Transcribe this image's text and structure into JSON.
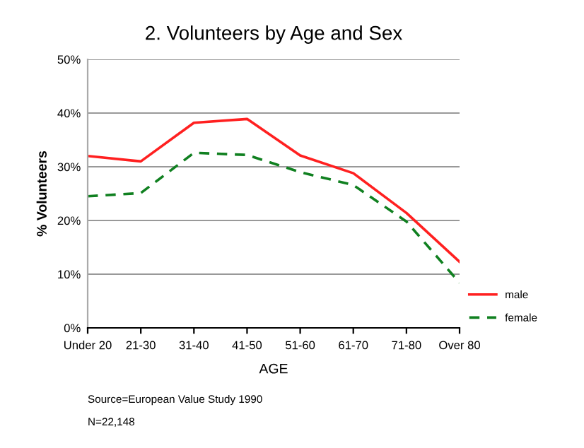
{
  "chart_data": {
    "type": "line",
    "title": "2. Volunteers by Age and Sex",
    "xlabel": "AGE",
    "ylabel": "% Volunteers",
    "categories": [
      "Under 20",
      "21-30",
      "31-40",
      "41-50",
      "51-60",
      "61-70",
      "71-80",
      "Over 80"
    ],
    "series": [
      {
        "name": "male",
        "color": "#ff2020",
        "line_style": "solid",
        "values": [
          32.0,
          31.0,
          38.2,
          38.9,
          32.1,
          28.8,
          21.4,
          12.3
        ]
      },
      {
        "name": "female",
        "color": "#108020",
        "line_style": "dashed",
        "values": [
          24.5,
          25.1,
          32.6,
          32.2,
          29.0,
          26.6,
          19.8,
          8.4
        ]
      }
    ],
    "ylim": [
      0,
      50
    ],
    "yticks": [
      {
        "value": 0,
        "label": "0%"
      },
      {
        "value": 10,
        "label": "10%"
      },
      {
        "value": 20,
        "label": "20%"
      },
      {
        "value": 30,
        "label": "30%"
      },
      {
        "value": 40,
        "label": "40%"
      },
      {
        "value": 50,
        "label": "50%"
      }
    ],
    "grid": "y",
    "legend": "bottom right",
    "marker": "none",
    "annotations": [
      "Source=European Value Study 1990",
      "N=22,148"
    ]
  }
}
